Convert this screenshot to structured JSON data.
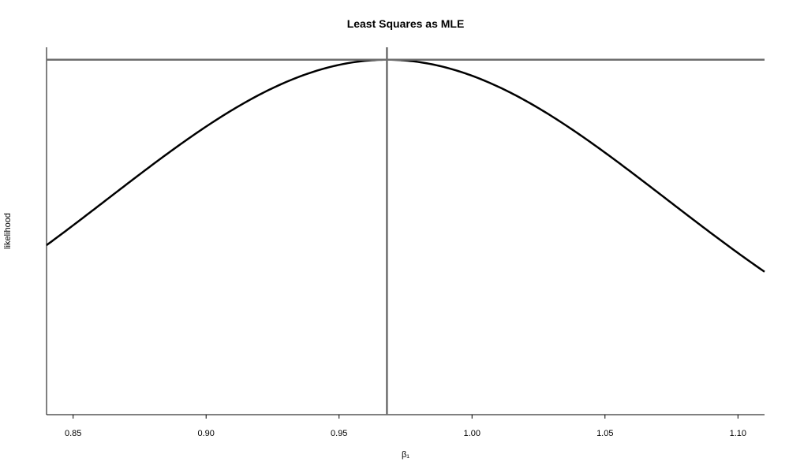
{
  "chart_data": {
    "type": "line",
    "title": "Least Squares as MLE",
    "xlabel": "β₁",
    "ylabel": "likelihood",
    "xlim": [
      0.84,
      1.11
    ],
    "x_ticks": [
      0.85,
      0.9,
      0.95,
      1.0,
      1.05,
      1.1
    ],
    "x_tick_labels": [
      "0.85",
      "0.90",
      "0.95",
      "1.00",
      "1.05",
      "1.10"
    ],
    "ylim": [
      0,
      1.035
    ],
    "y_ticks_shown": false,
    "grid": false,
    "series": [
      {
        "x": [
          0.84,
          0.86,
          0.88,
          0.9,
          0.92,
          0.94,
          0.96,
          0.968,
          0.98,
          1.0,
          1.02,
          1.04,
          1.06,
          1.08,
          1.1,
          1.11
        ],
        "y": [
          0.42,
          0.55,
          0.69,
          0.82,
          0.92,
          0.98,
          1.0,
          1.0,
          0.99,
          0.96,
          0.9,
          0.81,
          0.7,
          0.57,
          0.42,
          0.33
        ],
        "color": "#000000"
      }
    ],
    "reference_lines": {
      "vertical_x": 0.968,
      "horizontal_y": 1.0,
      "color": "#6e6e6e"
    }
  }
}
